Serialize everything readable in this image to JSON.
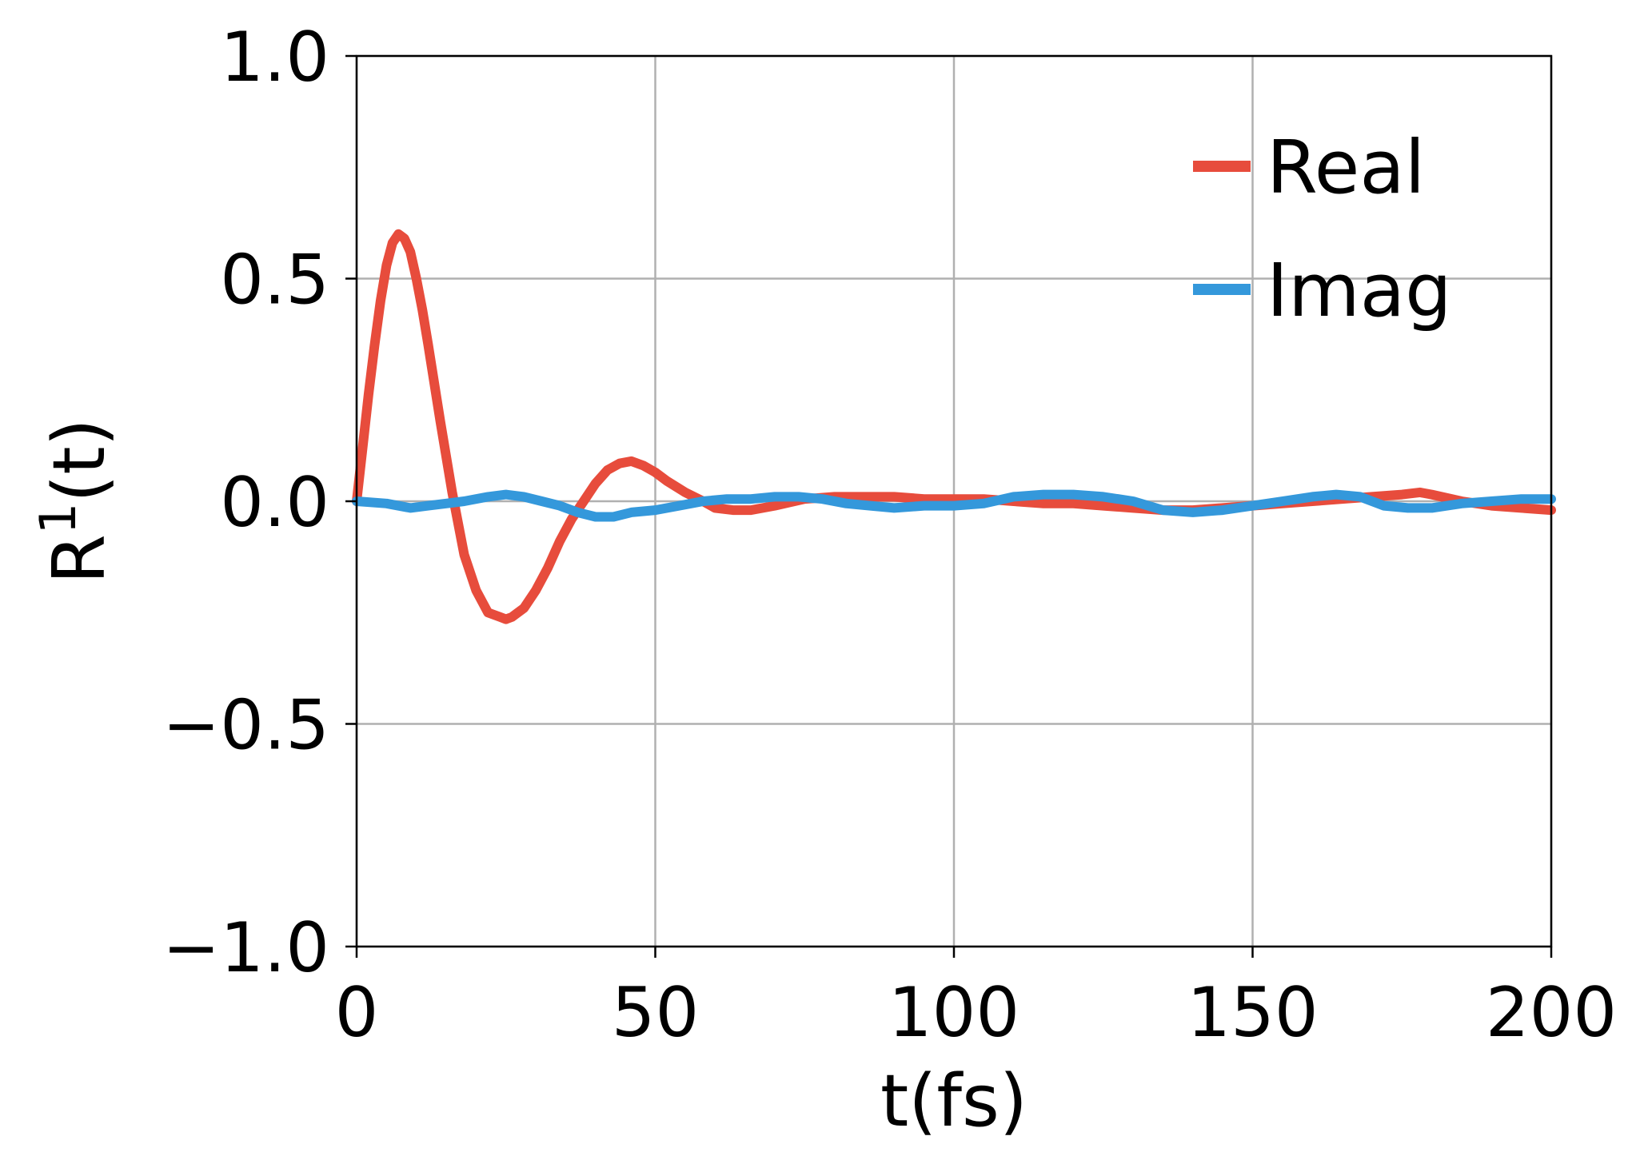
{
  "chart_data": {
    "type": "line",
    "xlabel": "t(fs)",
    "ylabel_base": "R",
    "ylabel_sup": "1",
    "ylabel_tail": "(t)",
    "xlim": [
      0,
      200
    ],
    "ylim": [
      -1.0,
      1.0
    ],
    "xticks": [
      0,
      50,
      100,
      150,
      200
    ],
    "xtick_labels": [
      "0",
      "50",
      "100",
      "150",
      "200"
    ],
    "yticks": [
      1.0,
      0.5,
      0.0,
      -0.5,
      -1.0
    ],
    "ytick_labels": [
      "1.0",
      "0.5",
      "0.0",
      "−0.5",
      "−1.0"
    ],
    "grid": true,
    "legend_position": "top-right",
    "series": [
      {
        "name": "Real",
        "color": "#e74c3c",
        "points": [
          [
            0,
            0.0
          ],
          [
            1,
            0.12
          ],
          [
            2,
            0.24
          ],
          [
            3,
            0.35
          ],
          [
            4,
            0.45
          ],
          [
            5,
            0.53
          ],
          [
            6,
            0.58
          ],
          [
            7,
            0.6
          ],
          [
            8,
            0.59
          ],
          [
            9,
            0.56
          ],
          [
            10,
            0.5
          ],
          [
            11,
            0.43
          ],
          [
            12,
            0.35
          ],
          [
            14,
            0.18
          ],
          [
            16,
            0.02
          ],
          [
            18,
            -0.12
          ],
          [
            20,
            -0.2
          ],
          [
            22,
            -0.25
          ],
          [
            24,
            -0.26
          ],
          [
            25,
            -0.265
          ],
          [
            26,
            -0.26
          ],
          [
            28,
            -0.24
          ],
          [
            30,
            -0.2
          ],
          [
            32,
            -0.15
          ],
          [
            34,
            -0.09
          ],
          [
            36,
            -0.04
          ],
          [
            38,
            0.0
          ],
          [
            40,
            0.04
          ],
          [
            42,
            0.07
          ],
          [
            44,
            0.085
          ],
          [
            46,
            0.09
          ],
          [
            48,
            0.08
          ],
          [
            50,
            0.065
          ],
          [
            52,
            0.045
          ],
          [
            55,
            0.02
          ],
          [
            58,
            0.0
          ],
          [
            60,
            -0.015
          ],
          [
            63,
            -0.02
          ],
          [
            66,
            -0.02
          ],
          [
            70,
            -0.01
          ],
          [
            75,
            0.005
          ],
          [
            80,
            0.01
          ],
          [
            85,
            0.01
          ],
          [
            90,
            0.01
          ],
          [
            95,
            0.005
          ],
          [
            100,
            0.005
          ],
          [
            105,
            0.005
          ],
          [
            110,
            0.0
          ],
          [
            115,
            -0.005
          ],
          [
            120,
            -0.005
          ],
          [
            125,
            -0.01
          ],
          [
            130,
            -0.015
          ],
          [
            135,
            -0.02
          ],
          [
            140,
            -0.02
          ],
          [
            145,
            -0.015
          ],
          [
            150,
            -0.01
          ],
          [
            155,
            -0.005
          ],
          [
            160,
            0.0
          ],
          [
            165,
            0.005
          ],
          [
            170,
            0.01
          ],
          [
            175,
            0.015
          ],
          [
            178,
            0.02
          ],
          [
            180,
            0.015
          ],
          [
            185,
            0.0
          ],
          [
            190,
            -0.01
          ],
          [
            195,
            -0.015
          ],
          [
            200,
            -0.02
          ]
        ]
      },
      {
        "name": "Imag",
        "color": "#3498db",
        "points": [
          [
            0,
            0.0
          ],
          [
            5,
            -0.005
          ],
          [
            9,
            -0.015
          ],
          [
            12,
            -0.01
          ],
          [
            15,
            -0.005
          ],
          [
            18,
            0.0
          ],
          [
            22,
            0.01
          ],
          [
            25,
            0.015
          ],
          [
            28,
            0.01
          ],
          [
            31,
            0.0
          ],
          [
            34,
            -0.01
          ],
          [
            37,
            -0.025
          ],
          [
            40,
            -0.035
          ],
          [
            43,
            -0.035
          ],
          [
            46,
            -0.025
          ],
          [
            50,
            -0.02
          ],
          [
            54,
            -0.01
          ],
          [
            58,
            0.0
          ],
          [
            62,
            0.005
          ],
          [
            66,
            0.005
          ],
          [
            70,
            0.01
          ],
          [
            74,
            0.01
          ],
          [
            78,
            0.005
          ],
          [
            82,
            -0.005
          ],
          [
            86,
            -0.01
          ],
          [
            90,
            -0.015
          ],
          [
            95,
            -0.01
          ],
          [
            100,
            -0.01
          ],
          [
            105,
            -0.005
          ],
          [
            110,
            0.01
          ],
          [
            115,
            0.015
          ],
          [
            120,
            0.015
          ],
          [
            125,
            0.01
          ],
          [
            130,
            0.0
          ],
          [
            135,
            -0.02
          ],
          [
            140,
            -0.025
          ],
          [
            145,
            -0.02
          ],
          [
            150,
            -0.01
          ],
          [
            155,
            0.0
          ],
          [
            160,
            0.01
          ],
          [
            164,
            0.015
          ],
          [
            168,
            0.01
          ],
          [
            172,
            -0.01
          ],
          [
            176,
            -0.015
          ],
          [
            180,
            -0.015
          ],
          [
            185,
            -0.005
          ],
          [
            190,
            0.0
          ],
          [
            195,
            0.005
          ],
          [
            200,
            0.005
          ]
        ]
      }
    ]
  }
}
